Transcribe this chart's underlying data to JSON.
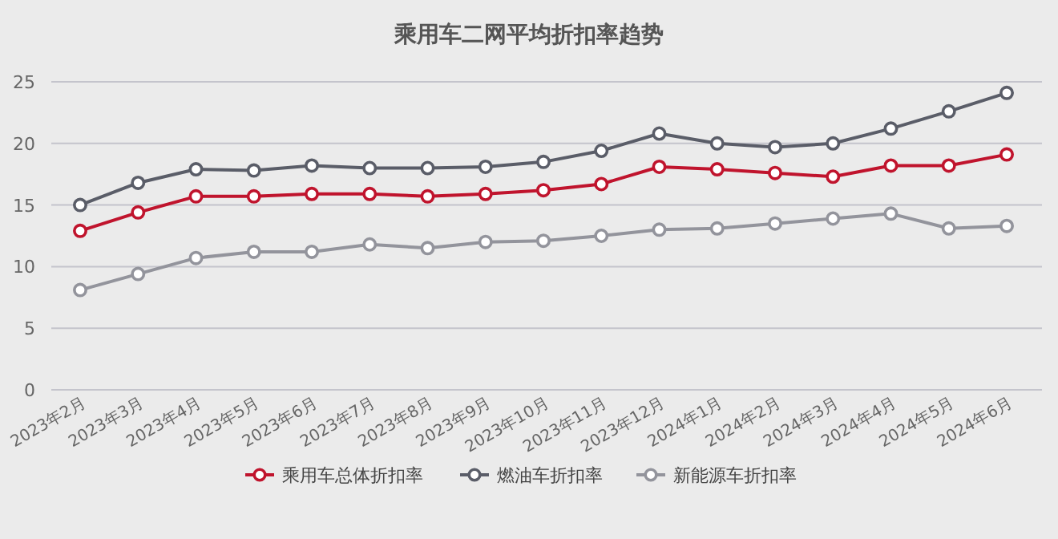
{
  "chart_data": {
    "type": "line",
    "title": "乘用车二网平均折扣率趋势",
    "categories": [
      "2023年2月",
      "2023年3月",
      "2023年4月",
      "2023年5月",
      "2023年6月",
      "2023年7月",
      "2023年8月",
      "2023年9月",
      "2023年10月",
      "2023年11月",
      "2023年12月",
      "2024年1月",
      "2024年2月",
      "2024年3月",
      "2024年4月",
      "2024年5月",
      "2024年6月"
    ],
    "series": [
      {
        "name": "乘用车总体折扣率",
        "color": "#c0142d",
        "values": [
          12.9,
          14.4,
          15.7,
          15.7,
          15.9,
          15.9,
          15.7,
          15.9,
          16.2,
          16.7,
          18.1,
          17.9,
          17.6,
          17.3,
          18.2,
          18.2,
          19.1
        ]
      },
      {
        "name": "燃油车折扣率",
        "color": "#5a5d68",
        "values": [
          15.0,
          16.8,
          17.9,
          17.8,
          18.2,
          18.0,
          18.0,
          18.1,
          18.5,
          19.4,
          20.8,
          20.0,
          19.7,
          20.0,
          21.2,
          22.6,
          24.1
        ]
      },
      {
        "name": "新能源车折扣率",
        "color": "#93949c",
        "values": [
          8.1,
          9.4,
          10.7,
          11.2,
          11.2,
          11.8,
          11.5,
          12.0,
          12.1,
          12.5,
          13.0,
          13.1,
          13.5,
          13.9,
          14.3,
          13.1,
          13.3
        ]
      }
    ],
    "ylim": [
      0,
      25
    ],
    "yticks": [
      0,
      5,
      10,
      15,
      20,
      25
    ],
    "grid": "y",
    "legend": "bottom",
    "marker": "circle",
    "line_style": "solid"
  }
}
